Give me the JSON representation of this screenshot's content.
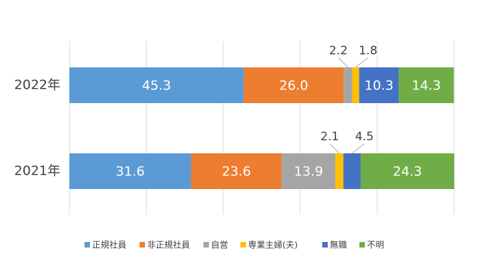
{
  "chart_data": {
    "type": "stacked_barh",
    "categories": [
      "2022年",
      "2021年"
    ],
    "series": [
      {
        "name": "正規社員",
        "color": "#5b9bd5",
        "values": [
          45.3,
          31.6
        ]
      },
      {
        "name": "非正規社員",
        "color": "#ed7d31",
        "values": [
          26.0,
          23.6
        ],
        "value_labels": [
          "26.0",
          "23.6"
        ]
      },
      {
        "name": "自営",
        "color": "#a5a5a5",
        "values": [
          2.2,
          13.9
        ]
      },
      {
        "name": "専業主婦(夫)",
        "color": "#ffc000",
        "values": [
          1.8,
          2.1
        ]
      },
      {
        "name": "無職",
        "color": "#4472c4",
        "values": [
          10.3,
          4.5
        ]
      },
      {
        "name": "不明",
        "color": "#70ad47",
        "values": [
          14.3,
          24.3
        ]
      }
    ],
    "xlim": [
      0,
      100
    ],
    "xticks": [
      0,
      20,
      40,
      60,
      80,
      100
    ],
    "grid": true,
    "legend": "bottom"
  }
}
